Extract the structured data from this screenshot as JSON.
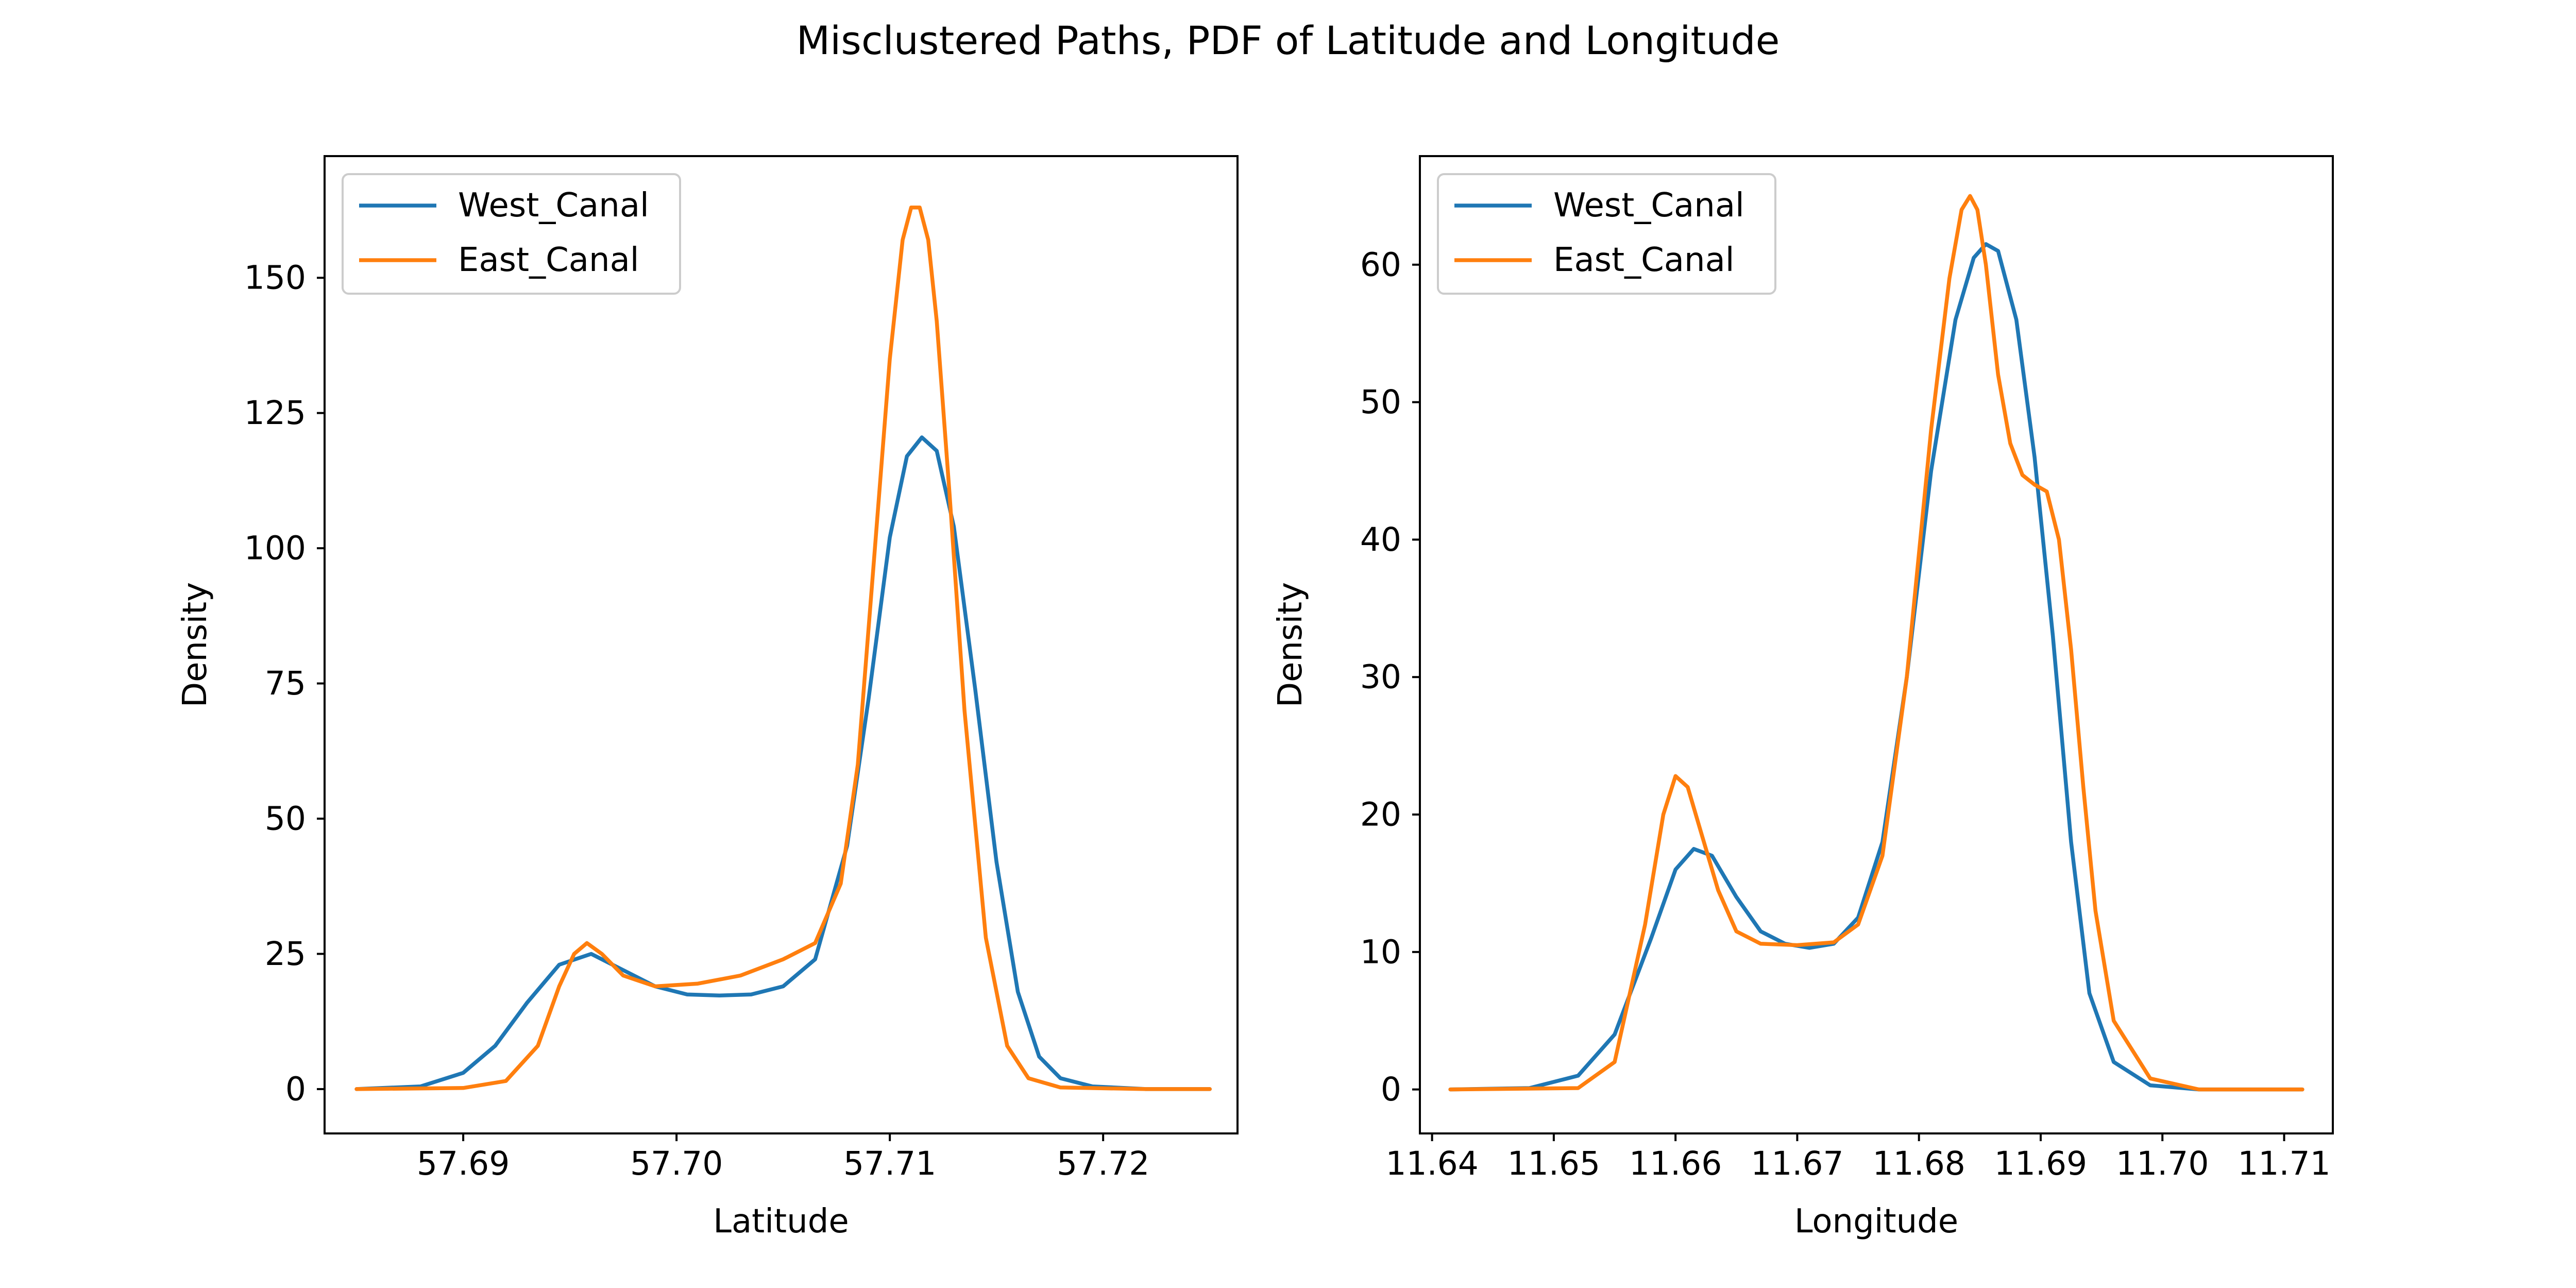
{
  "suptitle": "Misclustered Paths,  PDF of Latitude and Longitude",
  "colors": {
    "West_Canal": "#1f77b4",
    "East_Canal": "#ff7f0e"
  },
  "chart_data": [
    {
      "type": "line",
      "xlabel": "Latitude",
      "ylabel": "Density",
      "xlim": [
        57.6835,
        57.7263
      ],
      "ylim": [
        -8.2,
        172.5
      ],
      "xticks": [
        57.69,
        57.7,
        57.71,
        57.72
      ],
      "xtick_labels": [
        "57.69",
        "57.70",
        "57.71",
        "57.72"
      ],
      "yticks": [
        0,
        25,
        50,
        75,
        100,
        125,
        150
      ],
      "ytick_labels": [
        "0",
        "25",
        "50",
        "75",
        "100",
        "125",
        "150"
      ],
      "legend": {
        "placement": "upper left",
        "entries": [
          "West_Canal",
          "East_Canal"
        ]
      },
      "series": [
        {
          "name": "West_Canal",
          "x": [
            57.685,
            57.688,
            57.69,
            57.6915,
            57.693,
            57.6945,
            57.696,
            57.6975,
            57.699,
            57.7005,
            57.702,
            57.7035,
            57.705,
            57.7065,
            57.708,
            57.709,
            57.71,
            57.7108,
            57.7115,
            57.7122,
            57.713,
            57.714,
            57.715,
            57.716,
            57.717,
            57.718,
            57.7195,
            57.722,
            57.725
          ],
          "y": [
            0,
            0.5,
            3,
            8,
            16,
            23,
            25,
            22,
            19,
            17.5,
            17.3,
            17.5,
            19,
            24,
            45,
            72,
            102,
            117,
            120.5,
            118,
            104,
            74,
            42,
            18,
            6,
            2,
            0.5,
            0,
            0
          ]
        },
        {
          "name": "East_Canal",
          "x": [
            57.685,
            57.69,
            57.692,
            57.6935,
            57.6945,
            57.6952,
            57.6958,
            57.6965,
            57.6975,
            57.699,
            57.701,
            57.703,
            57.705,
            57.7065,
            57.7077,
            57.7085,
            57.7093,
            57.71,
            57.7106,
            57.711,
            57.7114,
            57.7118,
            57.7122,
            57.7128,
            57.7135,
            57.7145,
            57.7155,
            57.7165,
            57.718,
            57.722,
            57.725
          ],
          "y": [
            0,
            0.2,
            1.5,
            8,
            19,
            25,
            27,
            25,
            21,
            19,
            19.5,
            21,
            24,
            27,
            38,
            60,
            100,
            135,
            157,
            163,
            163,
            157,
            142,
            110,
            70,
            28,
            8,
            2,
            0.3,
            0,
            0
          ]
        }
      ]
    },
    {
      "type": "line",
      "xlabel": "Longitude",
      "ylabel": "Density",
      "xlim": [
        11.639,
        11.714
      ],
      "ylim": [
        -3.2,
        67.9
      ],
      "xticks": [
        11.64,
        11.65,
        11.66,
        11.67,
        11.68,
        11.69,
        11.7,
        11.71
      ],
      "xtick_labels": [
        "11.64",
        "11.65",
        "11.66",
        "11.67",
        "11.68",
        "11.69",
        "11.70",
        "11.71"
      ],
      "yticks": [
        0,
        10,
        20,
        30,
        40,
        50,
        60
      ],
      "ytick_labels": [
        "0",
        "10",
        "20",
        "30",
        "40",
        "50",
        "60"
      ],
      "legend": {
        "placement": "upper left",
        "entries": [
          "West_Canal",
          "East_Canal"
        ]
      },
      "series": [
        {
          "name": "West_Canal",
          "x": [
            11.6415,
            11.648,
            11.652,
            11.655,
            11.658,
            11.66,
            11.6615,
            11.663,
            11.665,
            11.667,
            11.669,
            11.671,
            11.673,
            11.675,
            11.677,
            11.679,
            11.681,
            11.683,
            11.6845,
            11.6855,
            11.6865,
            11.688,
            11.6895,
            11.691,
            11.6925,
            11.694,
            11.696,
            11.699,
            11.703,
            11.7115
          ],
          "y": [
            0,
            0.1,
            1,
            4,
            11,
            16,
            17.5,
            17,
            14,
            11.5,
            10.6,
            10.3,
            10.6,
            12.5,
            18,
            30,
            45,
            56,
            60.5,
            61.5,
            61,
            56,
            46,
            33,
            18,
            7,
            2,
            0.3,
            0,
            0
          ]
        },
        {
          "name": "East_Canal",
          "x": [
            11.6415,
            11.652,
            11.655,
            11.6575,
            11.659,
            11.66,
            11.661,
            11.662,
            11.6635,
            11.665,
            11.667,
            11.67,
            11.673,
            11.675,
            11.677,
            11.679,
            11.681,
            11.6825,
            11.6835,
            11.6842,
            11.6848,
            11.6855,
            11.6865,
            11.6875,
            11.6885,
            11.6895,
            11.6905,
            11.6915,
            11.6925,
            11.6935,
            11.6945,
            11.696,
            11.699,
            11.703,
            11.7115
          ],
          "y": [
            0,
            0.1,
            2,
            12,
            20,
            22.8,
            22,
            19,
            14.5,
            11.5,
            10.6,
            10.5,
            10.7,
            12,
            17,
            30,
            48,
            59,
            64,
            65,
            64,
            60,
            52,
            47,
            44.7,
            44,
            43.5,
            40,
            32,
            22,
            13,
            5,
            0.8,
            0,
            0
          ]
        }
      ]
    }
  ]
}
